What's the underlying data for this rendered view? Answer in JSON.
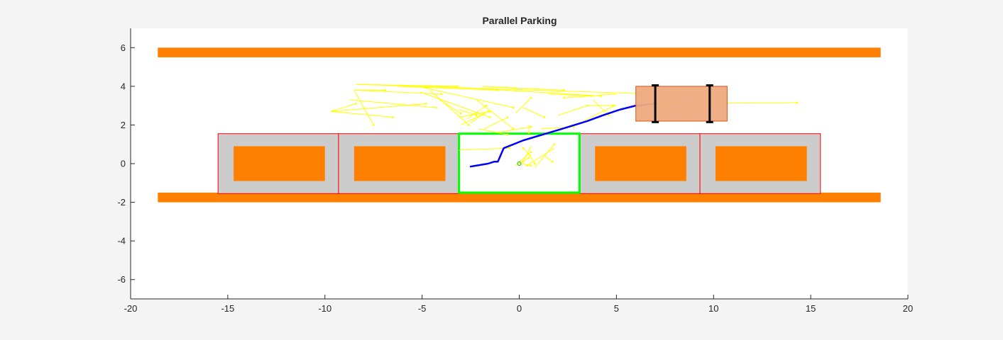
{
  "chart_data": {
    "type": "scatter",
    "title": "Parallel Parking",
    "xlabel": "",
    "ylabel": "",
    "xlim": [
      -20,
      20
    ],
    "ylim": [
      -7,
      7
    ],
    "xticks": [
      "-20",
      "-15",
      "-10",
      "-5",
      "0",
      "5",
      "10",
      "15",
      "20"
    ],
    "yticks": [
      "-6",
      "-4",
      "-2",
      "0",
      "2",
      "4",
      "6"
    ],
    "grid": false,
    "colors": {
      "curb": "#ff8000",
      "bay_fill": "#cccccc",
      "bay_edge": "#ff0000",
      "goal_edge": "#00ff00",
      "tree": "#ffff00",
      "path": "#0000ff",
      "ego_fill": "#eeaa7f",
      "ego_edge": "#d95319",
      "wheel": "#000000"
    },
    "curbs": [
      {
        "x": [
          -18.6,
          18.6
        ],
        "y": [
          5.5,
          6.0
        ]
      },
      {
        "x": [
          -18.6,
          18.6
        ],
        "y": [
          -2.0,
          -1.5
        ]
      }
    ],
    "parking_bays": [
      {
        "x": [
          -15.5,
          -9.3
        ],
        "y": [
          -1.55,
          1.55
        ]
      },
      {
        "x": [
          -9.3,
          -3.1
        ],
        "y": [
          -1.55,
          1.55
        ]
      },
      {
        "x": [
          3.1,
          9.3
        ],
        "y": [
          -1.55,
          1.55
        ]
      },
      {
        "x": [
          9.3,
          15.5
        ],
        "y": [
          -1.55,
          1.55
        ]
      }
    ],
    "parked_cars": [
      {
        "x": [
          -14.7,
          -10.0
        ],
        "y": [
          -0.9,
          0.9
        ]
      },
      {
        "x": [
          -8.5,
          -3.8
        ],
        "y": [
          -0.9,
          0.9
        ]
      },
      {
        "x": [
          3.9,
          8.6
        ],
        "y": [
          -0.9,
          0.9
        ]
      },
      {
        "x": [
          10.1,
          14.8
        ],
        "y": [
          -0.9,
          0.9
        ]
      }
    ],
    "goal_bay": {
      "x": [
        -3.1,
        3.1
      ],
      "y": [
        -1.5,
        1.55
      ]
    },
    "goal_point": [
      0,
      0
    ],
    "ego_vehicle": {
      "x": [
        6.0,
        10.7
      ],
      "y": [
        2.2,
        4.0
      ]
    },
    "wheels": [
      {
        "x": 7.0,
        "y": [
          2.15,
          4.05
        ]
      },
      {
        "x": 9.8,
        "y": [
          2.15,
          4.05
        ]
      }
    ],
    "planned_path": [
      [
        -2.5,
        -0.15
      ],
      [
        -1.6,
        0.0
      ],
      [
        -1.3,
        0.1
      ],
      [
        -1.1,
        0.1
      ],
      [
        -0.8,
        0.8
      ],
      [
        0.2,
        1.2
      ],
      [
        1.2,
        1.5
      ],
      [
        2.2,
        1.8
      ],
      [
        3.5,
        2.2
      ],
      [
        4.3,
        2.5
      ],
      [
        5.2,
        2.8
      ],
      [
        6.0,
        3.0
      ],
      [
        7.0,
        3.1
      ]
    ],
    "tree_edges": [
      [
        [
          7.0,
          3.1
        ],
        [
          14.3,
          3.15
        ]
      ],
      [
        [
          7.0,
          3.1
        ],
        [
          9.0,
          3.2
        ]
      ],
      [
        [
          7.0,
          3.1
        ],
        [
          8.8,
          2.6
        ]
      ],
      [
        [
          6.4,
          3.85
        ],
        [
          7.6,
          2.3
        ]
      ],
      [
        [
          6.4,
          3.85
        ],
        [
          9.9,
          3.4
        ]
      ],
      [
        [
          7.5,
          3.7
        ],
        [
          10.5,
          3.5
        ]
      ],
      [
        [
          -8.4,
          4.1
        ],
        [
          6.9,
          3.6
        ]
      ],
      [
        [
          -4.9,
          4.05
        ],
        [
          4.2,
          3.5
        ]
      ],
      [
        [
          -1.9,
          4.0
        ],
        [
          -0.2,
          3.9
        ]
      ],
      [
        [
          -1.9,
          4.0
        ],
        [
          2.3,
          3.8
        ]
      ],
      [
        [
          -6.2,
          4.0
        ],
        [
          -1.1,
          3.8
        ]
      ],
      [
        [
          -8.4,
          4.1
        ],
        [
          -3.2,
          4.0
        ]
      ],
      [
        [
          -8.5,
          3.8
        ],
        [
          -4.0,
          3.6
        ]
      ],
      [
        [
          -8.5,
          3.8
        ],
        [
          -6.9,
          3.8
        ]
      ],
      [
        [
          -8.5,
          3.8
        ],
        [
          -7.5,
          2.0
        ]
      ],
      [
        [
          -9.7,
          2.7
        ],
        [
          -4.8,
          3.1
        ]
      ],
      [
        [
          -9.7,
          2.7
        ],
        [
          -6.5,
          2.4
        ]
      ],
      [
        [
          -9.7,
          2.7
        ],
        [
          -8.4,
          3.1
        ]
      ],
      [
        [
          -8.7,
          3.3
        ],
        [
          -4.3,
          2.9
        ]
      ],
      [
        [
          -5.1,
          3.7
        ],
        [
          -1.5,
          2.4
        ]
      ],
      [
        [
          -5.2,
          4.0
        ],
        [
          -0.3,
          2.9
        ]
      ],
      [
        [
          -4.6,
          3.8
        ],
        [
          -2.6,
          2.0
        ]
      ],
      [
        [
          -4.1,
          3.3
        ],
        [
          -3.0,
          2.6
        ]
      ],
      [
        [
          -2.2,
          3.3
        ],
        [
          -0.3,
          1.8
        ]
      ],
      [
        [
          -3.1,
          2.8
        ],
        [
          -2.2,
          2.5
        ]
      ],
      [
        [
          -3.1,
          2.4
        ],
        [
          -1.5,
          2.7
        ]
      ],
      [
        [
          -2.7,
          2.3
        ],
        [
          -1.7,
          3.0
        ]
      ],
      [
        [
          -2.5,
          2.1
        ],
        [
          -1.8,
          2.6
        ]
      ],
      [
        [
          -3.0,
          2.0
        ],
        [
          -1.6,
          2.7
        ]
      ],
      [
        [
          -1.8,
          1.8
        ],
        [
          -0.6,
          2.4
        ]
      ],
      [
        [
          -2.1,
          1.8
        ],
        [
          -0.6,
          1.5
        ]
      ],
      [
        [
          -0.2,
          2.6
        ],
        [
          0.6,
          3.4
        ]
      ],
      [
        [
          0.2,
          2.9
        ],
        [
          1.3,
          2.4
        ]
      ],
      [
        [
          0.5,
          2.0
        ],
        [
          0.5,
          1.6
        ]
      ],
      [
        [
          1.1,
          1.8
        ],
        [
          2.8,
          1.9
        ]
      ],
      [
        [
          2.0,
          2.5
        ],
        [
          3.5,
          3.0
        ]
      ],
      [
        [
          3.5,
          3.0
        ],
        [
          4.8,
          3.0
        ]
      ],
      [
        [
          3.8,
          3.3
        ],
        [
          4.6,
          2.5
        ]
      ],
      [
        [
          1.5,
          3.6
        ],
        [
          3.7,
          3.5
        ]
      ],
      [
        [
          5.0,
          3.6
        ],
        [
          2.3,
          3.4
        ]
      ],
      [
        [
          -1.2,
          1.6
        ],
        [
          0.6,
          1.9
        ]
      ],
      [
        [
          -3.1,
          0.7
        ],
        [
          -0.5,
          0.8
        ]
      ],
      [
        [
          -0.2,
          -0.1
        ],
        [
          0.6,
          0.6
        ]
      ],
      [
        [
          0.0,
          0.0
        ],
        [
          0.5,
          0.3
        ]
      ],
      [
        [
          0.1,
          0.0
        ],
        [
          0.6,
          -0.1
        ]
      ],
      [
        [
          0.5,
          0.5
        ],
        [
          0.8,
          0.0
        ]
      ],
      [
        [
          0.6,
          0.9
        ],
        [
          0.2,
          0.1
        ]
      ],
      [
        [
          1.8,
          0.8
        ],
        [
          0.4,
          -0.1
        ]
      ],
      [
        [
          1.3,
          0.4
        ],
        [
          1.7,
          0.1
        ]
      ],
      [
        [
          0.8,
          -0.2
        ],
        [
          1.8,
          1.0
        ]
      ],
      [
        [
          0.6,
          0.4
        ],
        [
          0.2,
          0.8
        ]
      ],
      [
        [
          3.3,
          2.2
        ],
        [
          4.9,
          3.0
        ]
      ],
      [
        [
          8.4,
          2.7
        ],
        [
          8.8,
          2.4
        ]
      ],
      [
        [
          7.2,
          2.8
        ],
        [
          8.3,
          3.8
        ]
      ]
    ]
  }
}
